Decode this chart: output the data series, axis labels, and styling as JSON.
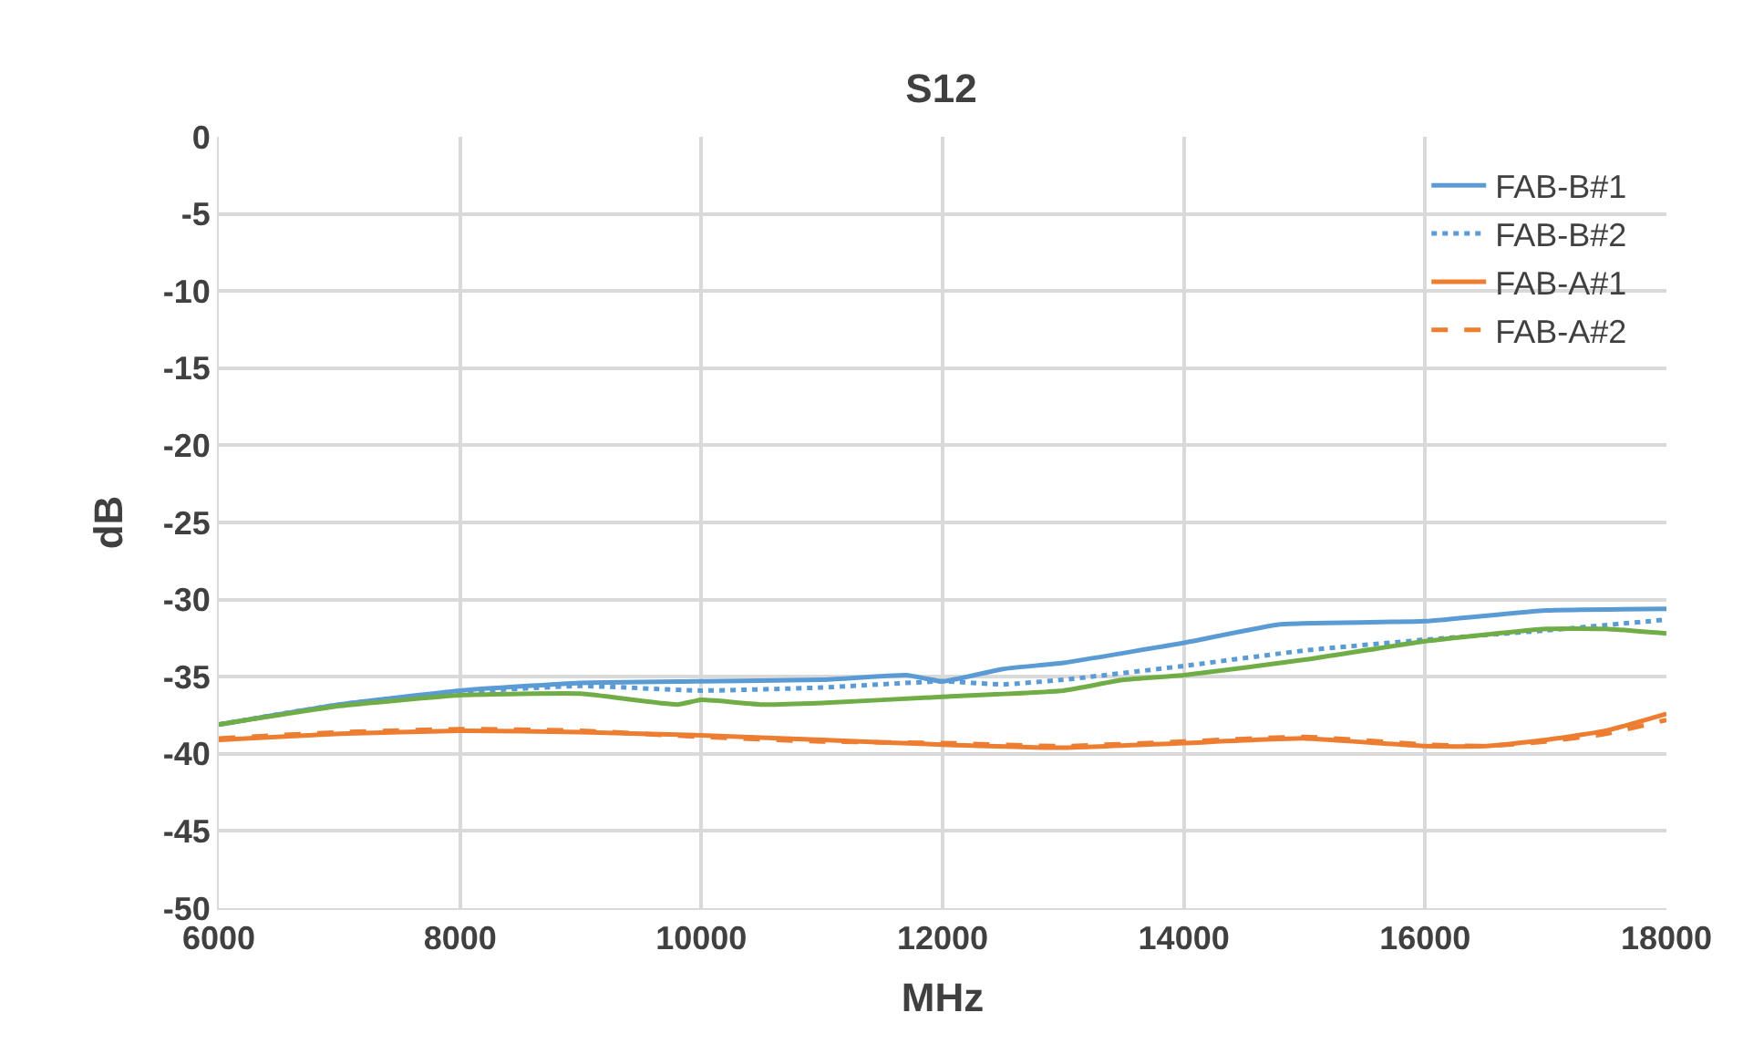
{
  "chart_data": {
    "type": "line",
    "title": "S12",
    "xlabel": "MHz",
    "ylabel": "dB",
    "xlim": [
      6000,
      18000
    ],
    "xticks": [
      6000,
      8000,
      10000,
      12000,
      14000,
      16000,
      18000
    ],
    "ylim": [
      -50,
      0
    ],
    "yticks": [
      0,
      -5,
      -10,
      -15,
      -20,
      -25,
      -30,
      -35,
      -40,
      -45,
      -50
    ],
    "grid": true,
    "legend": "top right",
    "marker": "none",
    "series": [
      {
        "name": "FAB-B#1",
        "color": "#5b9bd5",
        "line_style": "solid",
        "x": [
          6000,
          7000,
          8000,
          9000,
          10000,
          11000,
          11700,
          12000,
          12500,
          13000,
          14000,
          14800,
          16000,
          17000,
          18000
        ],
        "values": [
          -38.1,
          -36.8,
          -35.9,
          -35.4,
          -35.3,
          -35.2,
          -34.9,
          -35.3,
          -34.5,
          -34.1,
          -32.8,
          -31.6,
          -31.4,
          -30.7,
          -30.6
        ]
      },
      {
        "name": "FAB-B#2",
        "color": "#5b9bd5",
        "line_style": "dotted",
        "x": [
          6000,
          7000,
          8000,
          9000,
          10000,
          11000,
          12000,
          12500,
          13000,
          14000,
          15000,
          16000,
          17000,
          18000
        ],
        "values": [
          -38.1,
          -36.8,
          -36.0,
          -35.6,
          -35.9,
          -35.7,
          -35.3,
          -35.5,
          -35.2,
          -34.3,
          -33.3,
          -32.6,
          -32.0,
          -31.3
        ]
      },
      {
        "name": "FAB-A#1",
        "color": "#ed7d31",
        "line_style": "solid",
        "x": [
          6000,
          7000,
          8000,
          9000,
          10000,
          11000,
          12000,
          13000,
          14000,
          15000,
          16000,
          16500,
          17000,
          17500,
          18000
        ],
        "values": [
          -39.1,
          -38.7,
          -38.5,
          -38.6,
          -38.8,
          -39.1,
          -39.4,
          -39.6,
          -39.3,
          -39.0,
          -39.5,
          -39.5,
          -39.1,
          -38.5,
          -37.4
        ]
      },
      {
        "name": "FAB-A#2",
        "color": "#ed7d31",
        "line_style": "dashed",
        "x": [
          6000,
          7000,
          8000,
          9000,
          10000,
          11000,
          12000,
          13000,
          14000,
          15000,
          16000,
          16500,
          17000,
          17500,
          18000
        ],
        "values": [
          -39.0,
          -38.6,
          -38.4,
          -38.5,
          -38.9,
          -39.2,
          -39.3,
          -39.5,
          -39.2,
          -38.9,
          -39.4,
          -39.5,
          -39.2,
          -38.7,
          -37.8
        ]
      },
      {
        "color": "#70ad47",
        "line_style": "solid",
        "x": [
          6000,
          7000,
          8000,
          9000,
          9800,
          10000,
          10500,
          11000,
          12000,
          13000,
          13500,
          14000,
          15000,
          16000,
          17000,
          17500,
          18000
        ],
        "values": [
          -38.1,
          -36.9,
          -36.2,
          -36.1,
          -36.8,
          -36.5,
          -36.8,
          -36.7,
          -36.3,
          -35.9,
          -35.2,
          -34.9,
          -33.9,
          -32.7,
          -31.9,
          -31.9,
          -32.2
        ]
      }
    ]
  }
}
